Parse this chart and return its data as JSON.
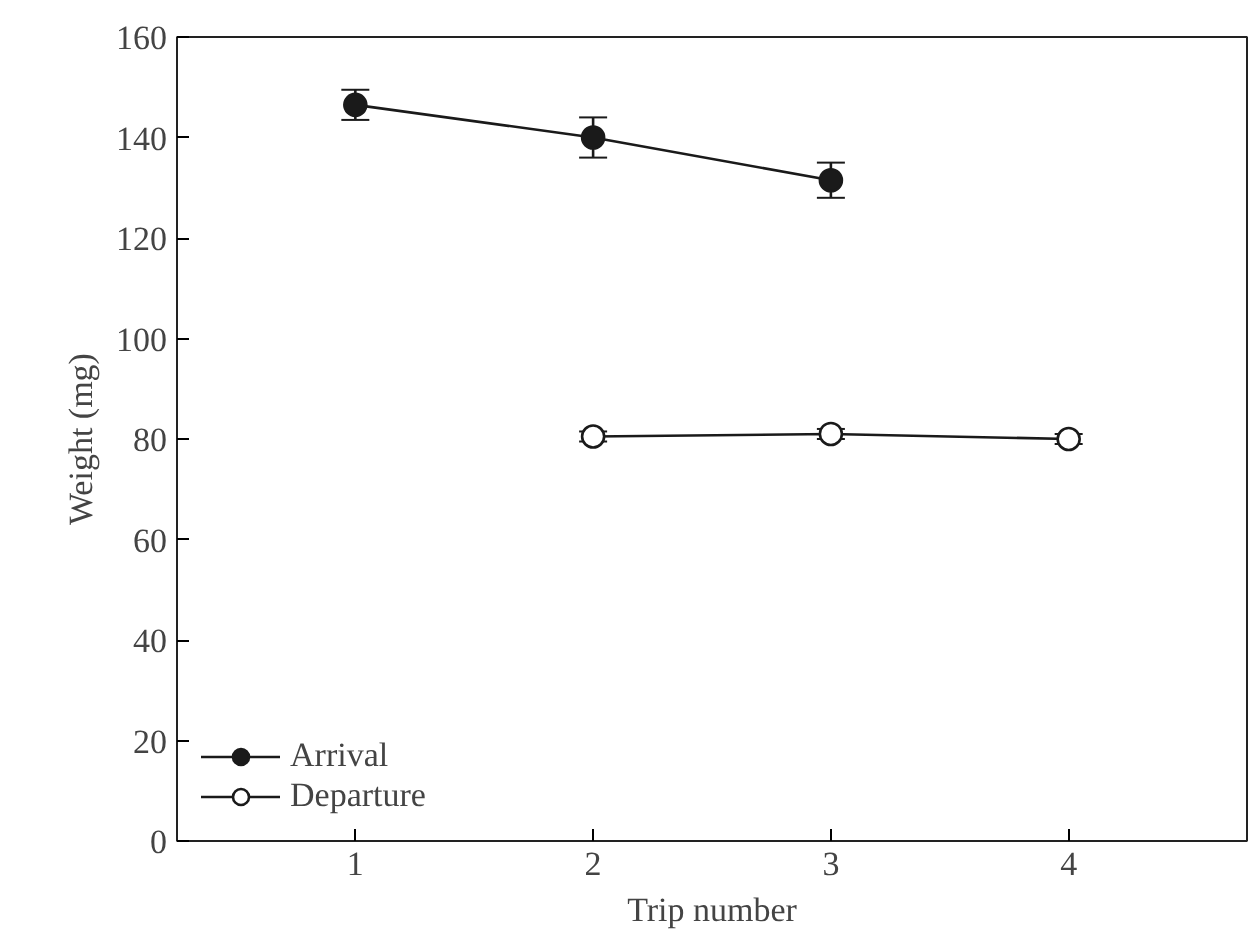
{
  "chart_data": {
    "type": "line",
    "xlabel": "Trip number",
    "ylabel": "Weight (mg)",
    "xlim": [
      0.25,
      4.75
    ],
    "xticks": [
      1,
      2,
      3,
      4
    ],
    "ylim": [
      0,
      160
    ],
    "yticks": [
      0,
      20,
      40,
      60,
      80,
      100,
      120,
      140,
      160
    ],
    "series": [
      {
        "name": "Arrival",
        "color": "#1a1a1a",
        "x": [
          1,
          2,
          3
        ],
        "values": [
          146.5,
          140,
          131.5
        ],
        "errors": [
          3,
          4,
          3.5
        ],
        "marker": "circle"
      },
      {
        "name": "Departure",
        "color": "#ffffff",
        "x": [
          2,
          3,
          4
        ],
        "values": [
          80.5,
          81,
          80
        ],
        "errors": [
          1,
          1,
          1
        ],
        "marker": "circle"
      }
    ],
    "grid": false,
    "legend": "bottom left",
    "line_style": "solid"
  }
}
